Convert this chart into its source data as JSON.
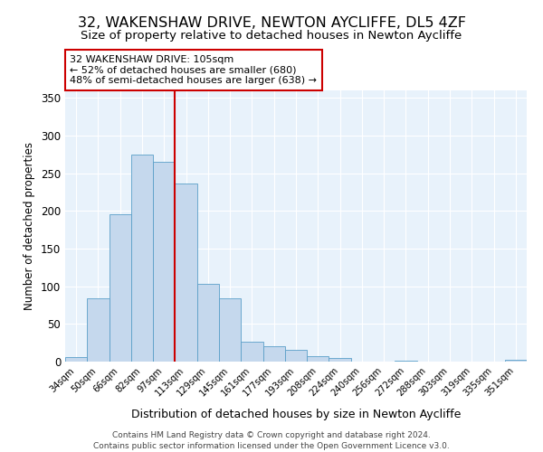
{
  "title": "32, WAKENSHAW DRIVE, NEWTON AYCLIFFE, DL5 4ZF",
  "subtitle": "Size of property relative to detached houses in Newton Aycliffe",
  "xlabel": "Distribution of detached houses by size in Newton Aycliffe",
  "ylabel": "Number of detached properties",
  "bin_labels": [
    "34sqm",
    "50sqm",
    "66sqm",
    "82sqm",
    "97sqm",
    "113sqm",
    "129sqm",
    "145sqm",
    "161sqm",
    "177sqm",
    "193sqm",
    "208sqm",
    "224sqm",
    "240sqm",
    "256sqm",
    "272sqm",
    "288sqm",
    "303sqm",
    "319sqm",
    "335sqm",
    "351sqm"
  ],
  "bin_values": [
    6,
    84,
    196,
    275,
    265,
    237,
    103,
    84,
    27,
    20,
    16,
    7,
    5,
    0,
    0,
    1,
    0,
    0,
    0,
    0,
    2
  ],
  "bar_color": "#c5d8ed",
  "bar_edge_color": "#5a9fc8",
  "vline_x": 4.5,
  "vline_color": "#cc0000",
  "annotation_text": "32 WAKENSHAW DRIVE: 105sqm\n← 52% of detached houses are smaller (680)\n48% of semi-detached houses are larger (638) →",
  "annotation_box_color": "#ffffff",
  "annotation_box_edge_color": "#cc0000",
  "ylim": [
    0,
    360
  ],
  "yticks": [
    0,
    50,
    100,
    150,
    200,
    250,
    300,
    350
  ],
  "footer_line1": "Contains HM Land Registry data © Crown copyright and database right 2024.",
  "footer_line2": "Contains public sector information licensed under the Open Government Licence v3.0.",
  "background_color": "#e8f2fb",
  "title_fontsize": 11.5,
  "subtitle_fontsize": 9.5
}
